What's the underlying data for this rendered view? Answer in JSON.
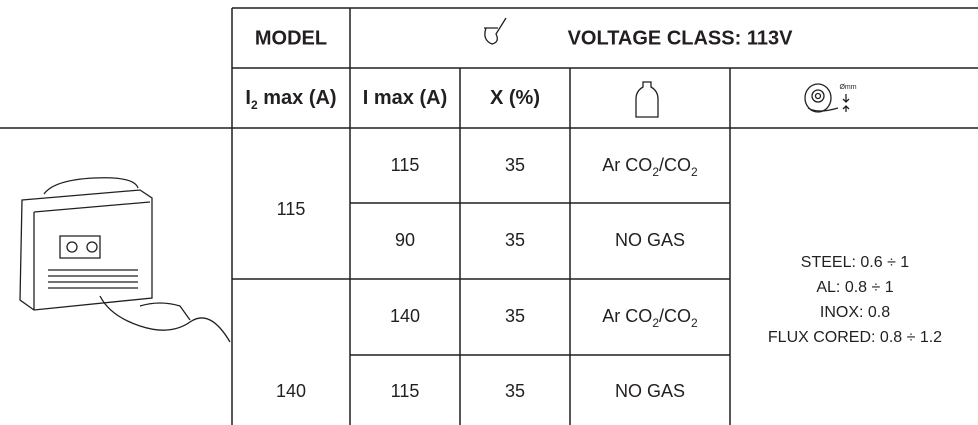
{
  "header": {
    "model": "MODEL",
    "voltage_class": "VOLTAGE CLASS: 113V",
    "columns": [
      {
        "parts": [
          {
            "text": "I"
          },
          {
            "text": "2",
            "sub": true
          },
          {
            "text": " max (A)"
          }
        ]
      },
      {
        "parts": [
          {
            "text": "I max (A)"
          }
        ]
      },
      {
        "parts": [
          {
            "text": "X (%)"
          }
        ]
      }
    ],
    "wire_icon_label": "Ømm"
  },
  "table": {
    "groups": [
      {
        "model": 115,
        "rows": [
          {
            "i_max": 115,
            "x": 35,
            "gas": [
              {
                "text": "Ar CO"
              },
              {
                "text": "2",
                "sub": true
              },
              {
                "text": "/CO"
              },
              {
                "text": "2",
                "sub": true
              }
            ]
          },
          {
            "i_max": 90,
            "x": 35,
            "gas": [
              {
                "text": "NO GAS"
              }
            ]
          }
        ]
      },
      {
        "model": 140,
        "rows": [
          {
            "i_max": 140,
            "x": 35,
            "gas": [
              {
                "text": "Ar CO"
              },
              {
                "text": "2",
                "sub": true
              },
              {
                "text": "/CO"
              },
              {
                "text": "2",
                "sub": true
              }
            ]
          },
          {
            "i_max": 115,
            "x": 35,
            "gas": [
              {
                "text": "NO GAS"
              }
            ]
          }
        ]
      }
    ],
    "wire": [
      "STEEL: 0.6 ÷ 1",
      "AL: 0.8 ÷ 1",
      "INOX: 0.8",
      "FLUX CORED: 0.8 ÷ 1.2"
    ]
  }
}
